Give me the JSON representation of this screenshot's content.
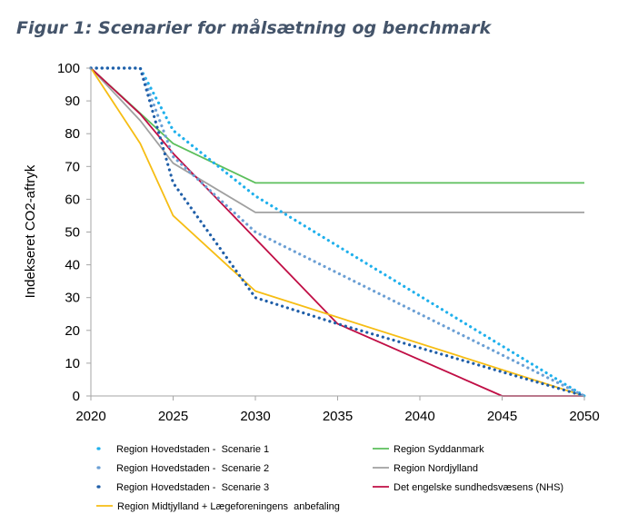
{
  "title": "Figur 1: Scenarier for målsætning og benchmark",
  "colors": {
    "hovedstaden_1": "#1fb0ec",
    "hovedstaden_2": "#6b9fd4",
    "hovedstaden_3": "#1f5ea8",
    "syddanmark": "#5cbf5c",
    "nordjylland": "#a0a0a0",
    "nhs": "#c00e45",
    "midtjylland": "#f6bd14",
    "axis": "#a6a6a6"
  },
  "chart_data": {
    "type": "line",
    "title": "Figur 1: Scenarier for målsætning og benchmark",
    "xlabel": "",
    "ylabel": "Indekseret CO2-aftryk",
    "xlim": [
      2020,
      2050
    ],
    "ylim": [
      0,
      100
    ],
    "xticks": [
      "2020",
      "2025",
      "2030",
      "2035",
      "2040",
      "2045",
      "2050"
    ],
    "yticks": [
      "0",
      "10",
      "20",
      "30",
      "40",
      "50",
      "60",
      "70",
      "80",
      "90",
      "100"
    ],
    "grid": false,
    "legend_position": "bottom",
    "series": [
      {
        "name": "Region Hovedstaden -  Scenarie 1",
        "style": "dotted",
        "color_key": "hovedstaden_1",
        "points": [
          [
            2020,
            100
          ],
          [
            2023,
            100
          ],
          [
            2025,
            81
          ],
          [
            2030,
            61
          ],
          [
            2050,
            0
          ]
        ]
      },
      {
        "name": "Region Hovedstaden -  Scenarie 2",
        "style": "dotted",
        "color_key": "hovedstaden_2",
        "points": [
          [
            2020,
            100
          ],
          [
            2023,
            100
          ],
          [
            2025,
            73
          ],
          [
            2030,
            50
          ],
          [
            2050,
            0
          ]
        ]
      },
      {
        "name": "Region Hovedstaden -  Scenarie 3",
        "style": "dotted",
        "color_key": "hovedstaden_3",
        "points": [
          [
            2020,
            100
          ],
          [
            2023,
            100
          ],
          [
            2025,
            65
          ],
          [
            2030,
            30
          ],
          [
            2035,
            22
          ],
          [
            2050,
            0
          ]
        ]
      },
      {
        "name": "Region Syddanmark",
        "style": "solid",
        "color_key": "syddanmark",
        "points": [
          [
            2020,
            100
          ],
          [
            2025,
            77
          ],
          [
            2030,
            65
          ],
          [
            2050,
            65
          ]
        ]
      },
      {
        "name": "Region Nordjylland",
        "style": "solid",
        "color_key": "nordjylland",
        "points": [
          [
            2020,
            100
          ],
          [
            2023,
            84
          ],
          [
            2025,
            71
          ],
          [
            2030,
            56
          ],
          [
            2050,
            56
          ]
        ]
      },
      {
        "name": "Det engelske sundhedsvæsens (NHS)",
        "style": "solid",
        "color_key": "nhs",
        "points": [
          [
            2020,
            100
          ],
          [
            2023,
            86
          ],
          [
            2025,
            74
          ],
          [
            2030,
            48
          ],
          [
            2035,
            22
          ],
          [
            2045,
            0
          ],
          [
            2050,
            0
          ]
        ]
      },
      {
        "name": "Region Midtjylland + Lægeforeningens  anbefaling",
        "style": "solid",
        "color_key": "midtjylland",
        "points": [
          [
            2020,
            100
          ],
          [
            2023,
            77
          ],
          [
            2025,
            55
          ],
          [
            2030,
            32
          ],
          [
            2050,
            0
          ]
        ]
      }
    ]
  }
}
